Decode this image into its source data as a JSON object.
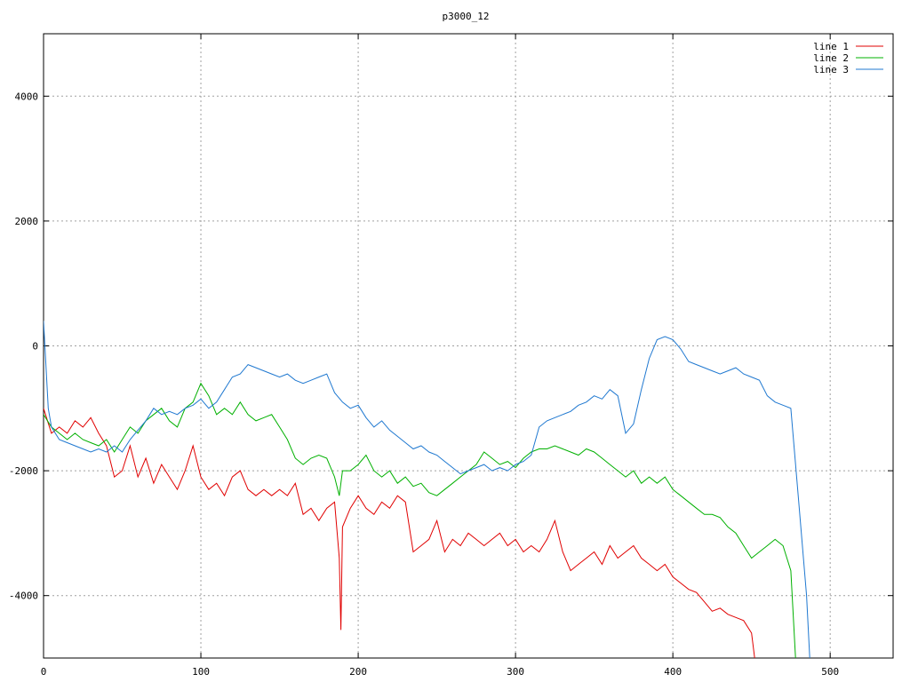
{
  "chart_data": {
    "type": "line",
    "title": "p3000_12",
    "xlabel": "",
    "ylabel": "",
    "xlim": [
      0,
      540
    ],
    "ylim": [
      -5000,
      5000
    ],
    "x_ticks": [
      0,
      100,
      200,
      300,
      400,
      500
    ],
    "y_ticks": [
      -4000,
      -2000,
      0,
      2000,
      4000
    ],
    "x_tick_labels": [
      "0",
      "100",
      "200",
      "300",
      "400",
      "500"
    ],
    "y_tick_labels": [
      "-4000",
      "-2000",
      "0",
      "2000",
      "4000"
    ],
    "grid": true,
    "legend_position": "top-right",
    "series": [
      {
        "name": "line 1",
        "color": "#e00000",
        "points": [
          [
            0,
            -1000
          ],
          [
            5,
            -1400
          ],
          [
            10,
            -1300
          ],
          [
            15,
            -1400
          ],
          [
            20,
            -1200
          ],
          [
            25,
            -1300
          ],
          [
            30,
            -1150
          ],
          [
            35,
            -1400
          ],
          [
            40,
            -1600
          ],
          [
            45,
            -2100
          ],
          [
            50,
            -2000
          ],
          [
            55,
            -1600
          ],
          [
            60,
            -2100
          ],
          [
            65,
            -1800
          ],
          [
            70,
            -2200
          ],
          [
            75,
            -1900
          ],
          [
            80,
            -2100
          ],
          [
            85,
            -2300
          ],
          [
            90,
            -2000
          ],
          [
            95,
            -1600
          ],
          [
            100,
            -2100
          ],
          [
            105,
            -2300
          ],
          [
            110,
            -2200
          ],
          [
            115,
            -2400
          ],
          [
            120,
            -2100
          ],
          [
            125,
            -2000
          ],
          [
            130,
            -2300
          ],
          [
            135,
            -2400
          ],
          [
            140,
            -2300
          ],
          [
            145,
            -2400
          ],
          [
            150,
            -2300
          ],
          [
            155,
            -2400
          ],
          [
            160,
            -2200
          ],
          [
            165,
            -2700
          ],
          [
            170,
            -2600
          ],
          [
            175,
            -2800
          ],
          [
            180,
            -2600
          ],
          [
            185,
            -2500
          ],
          [
            188,
            -3400
          ],
          [
            189,
            -4550
          ],
          [
            190,
            -2900
          ],
          [
            195,
            -2600
          ],
          [
            200,
            -2400
          ],
          [
            205,
            -2600
          ],
          [
            210,
            -2700
          ],
          [
            215,
            -2500
          ],
          [
            220,
            -2600
          ],
          [
            225,
            -2400
          ],
          [
            230,
            -2500
          ],
          [
            235,
            -3300
          ],
          [
            240,
            -3200
          ],
          [
            245,
            -3100
          ],
          [
            250,
            -2800
          ],
          [
            255,
            -3300
          ],
          [
            260,
            -3100
          ],
          [
            265,
            -3200
          ],
          [
            270,
            -3000
          ],
          [
            275,
            -3100
          ],
          [
            280,
            -3200
          ],
          [
            285,
            -3100
          ],
          [
            290,
            -3000
          ],
          [
            295,
            -3200
          ],
          [
            300,
            -3100
          ],
          [
            305,
            -3300
          ],
          [
            310,
            -3200
          ],
          [
            315,
            -3300
          ],
          [
            320,
            -3100
          ],
          [
            325,
            -2800
          ],
          [
            330,
            -3300
          ],
          [
            335,
            -3600
          ],
          [
            340,
            -3500
          ],
          [
            345,
            -3400
          ],
          [
            350,
            -3300
          ],
          [
            355,
            -3500
          ],
          [
            360,
            -3200
          ],
          [
            365,
            -3400
          ],
          [
            370,
            -3300
          ],
          [
            375,
            -3200
          ],
          [
            380,
            -3400
          ],
          [
            385,
            -3500
          ],
          [
            390,
            -3600
          ],
          [
            395,
            -3500
          ],
          [
            400,
            -3700
          ],
          [
            405,
            -3800
          ],
          [
            410,
            -3900
          ],
          [
            415,
            -3950
          ],
          [
            420,
            -4100
          ],
          [
            425,
            -4250
          ],
          [
            430,
            -4200
          ],
          [
            435,
            -4300
          ],
          [
            440,
            -4350
          ],
          [
            445,
            -4400
          ],
          [
            450,
            -4600
          ],
          [
            452,
            -5000
          ]
        ]
      },
      {
        "name": "line 2",
        "color": "#00b000",
        "points": [
          [
            0,
            -1100
          ],
          [
            5,
            -1300
          ],
          [
            10,
            -1400
          ],
          [
            15,
            -1500
          ],
          [
            20,
            -1400
          ],
          [
            25,
            -1500
          ],
          [
            30,
            -1550
          ],
          [
            35,
            -1600
          ],
          [
            40,
            -1500
          ],
          [
            45,
            -1700
          ],
          [
            50,
            -1500
          ],
          [
            55,
            -1300
          ],
          [
            60,
            -1400
          ],
          [
            65,
            -1200
          ],
          [
            70,
            -1100
          ],
          [
            75,
            -1000
          ],
          [
            80,
            -1200
          ],
          [
            85,
            -1300
          ],
          [
            90,
            -1000
          ],
          [
            95,
            -900
          ],
          [
            100,
            -600
          ],
          [
            105,
            -800
          ],
          [
            110,
            -1100
          ],
          [
            115,
            -1000
          ],
          [
            120,
            -1100
          ],
          [
            125,
            -900
          ],
          [
            130,
            -1100
          ],
          [
            135,
            -1200
          ],
          [
            140,
            -1150
          ],
          [
            145,
            -1100
          ],
          [
            150,
            -1300
          ],
          [
            155,
            -1500
          ],
          [
            160,
            -1800
          ],
          [
            165,
            -1900
          ],
          [
            170,
            -1800
          ],
          [
            175,
            -1750
          ],
          [
            180,
            -1800
          ],
          [
            185,
            -2100
          ],
          [
            188,
            -2400
          ],
          [
            190,
            -2000
          ],
          [
            195,
            -2000
          ],
          [
            200,
            -1900
          ],
          [
            205,
            -1750
          ],
          [
            210,
            -2000
          ],
          [
            215,
            -2100
          ],
          [
            220,
            -2000
          ],
          [
            225,
            -2200
          ],
          [
            230,
            -2100
          ],
          [
            235,
            -2250
          ],
          [
            240,
            -2200
          ],
          [
            245,
            -2350
          ],
          [
            250,
            -2400
          ],
          [
            255,
            -2300
          ],
          [
            260,
            -2200
          ],
          [
            265,
            -2100
          ],
          [
            270,
            -2000
          ],
          [
            275,
            -1900
          ],
          [
            280,
            -1700
          ],
          [
            285,
            -1800
          ],
          [
            290,
            -1900
          ],
          [
            295,
            -1850
          ],
          [
            300,
            -1950
          ],
          [
            305,
            -1800
          ],
          [
            310,
            -1700
          ],
          [
            315,
            -1650
          ],
          [
            320,
            -1650
          ],
          [
            325,
            -1600
          ],
          [
            330,
            -1650
          ],
          [
            335,
            -1700
          ],
          [
            340,
            -1750
          ],
          [
            345,
            -1650
          ],
          [
            350,
            -1700
          ],
          [
            355,
            -1800
          ],
          [
            360,
            -1900
          ],
          [
            365,
            -2000
          ],
          [
            370,
            -2100
          ],
          [
            375,
            -2000
          ],
          [
            380,
            -2200
          ],
          [
            385,
            -2100
          ],
          [
            390,
            -2200
          ],
          [
            395,
            -2100
          ],
          [
            400,
            -2300
          ],
          [
            405,
            -2400
          ],
          [
            410,
            -2500
          ],
          [
            415,
            -2600
          ],
          [
            420,
            -2700
          ],
          [
            425,
            -2700
          ],
          [
            430,
            -2750
          ],
          [
            435,
            -2900
          ],
          [
            440,
            -3000
          ],
          [
            445,
            -3200
          ],
          [
            450,
            -3400
          ],
          [
            455,
            -3300
          ],
          [
            460,
            -3200
          ],
          [
            465,
            -3100
          ],
          [
            470,
            -3200
          ],
          [
            475,
            -3600
          ],
          [
            478,
            -5000
          ]
        ]
      },
      {
        "name": "line 3",
        "color": "#1f78d0",
        "points": [
          [
            0,
            400
          ],
          [
            3,
            -1000
          ],
          [
            5,
            -1300
          ],
          [
            10,
            -1500
          ],
          [
            15,
            -1550
          ],
          [
            20,
            -1600
          ],
          [
            25,
            -1650
          ],
          [
            30,
            -1700
          ],
          [
            35,
            -1650
          ],
          [
            40,
            -1700
          ],
          [
            45,
            -1600
          ],
          [
            50,
            -1700
          ],
          [
            55,
            -1500
          ],
          [
            60,
            -1350
          ],
          [
            65,
            -1200
          ],
          [
            70,
            -1000
          ],
          [
            75,
            -1100
          ],
          [
            80,
            -1050
          ],
          [
            85,
            -1100
          ],
          [
            90,
            -1000
          ],
          [
            95,
            -950
          ],
          [
            100,
            -850
          ],
          [
            105,
            -1000
          ],
          [
            110,
            -900
          ],
          [
            115,
            -700
          ],
          [
            120,
            -500
          ],
          [
            125,
            -450
          ],
          [
            130,
            -300
          ],
          [
            135,
            -350
          ],
          [
            140,
            -400
          ],
          [
            145,
            -450
          ],
          [
            150,
            -500
          ],
          [
            155,
            -450
          ],
          [
            160,
            -550
          ],
          [
            165,
            -600
          ],
          [
            170,
            -550
          ],
          [
            175,
            -500
          ],
          [
            180,
            -450
          ],
          [
            185,
            -750
          ],
          [
            190,
            -900
          ],
          [
            195,
            -1000
          ],
          [
            200,
            -950
          ],
          [
            205,
            -1150
          ],
          [
            210,
            -1300
          ],
          [
            215,
            -1200
          ],
          [
            220,
            -1350
          ],
          [
            225,
            -1450
          ],
          [
            230,
            -1550
          ],
          [
            235,
            -1650
          ],
          [
            240,
            -1600
          ],
          [
            245,
            -1700
          ],
          [
            250,
            -1750
          ],
          [
            255,
            -1850
          ],
          [
            260,
            -1950
          ],
          [
            265,
            -2050
          ],
          [
            270,
            -2000
          ],
          [
            275,
            -1950
          ],
          [
            280,
            -1900
          ],
          [
            285,
            -2000
          ],
          [
            290,
            -1950
          ],
          [
            295,
            -2000
          ],
          [
            300,
            -1900
          ],
          [
            305,
            -1850
          ],
          [
            310,
            -1750
          ],
          [
            315,
            -1300
          ],
          [
            320,
            -1200
          ],
          [
            325,
            -1150
          ],
          [
            330,
            -1100
          ],
          [
            335,
            -1050
          ],
          [
            340,
            -950
          ],
          [
            345,
            -900
          ],
          [
            350,
            -800
          ],
          [
            355,
            -850
          ],
          [
            360,
            -700
          ],
          [
            365,
            -800
          ],
          [
            370,
            -1400
          ],
          [
            375,
            -1250
          ],
          [
            380,
            -700
          ],
          [
            385,
            -200
          ],
          [
            390,
            100
          ],
          [
            395,
            150
          ],
          [
            400,
            100
          ],
          [
            405,
            -50
          ],
          [
            410,
            -250
          ],
          [
            415,
            -300
          ],
          [
            420,
            -350
          ],
          [
            425,
            -400
          ],
          [
            430,
            -450
          ],
          [
            435,
            -400
          ],
          [
            440,
            -350
          ],
          [
            445,
            -450
          ],
          [
            450,
            -500
          ],
          [
            455,
            -550
          ],
          [
            460,
            -800
          ],
          [
            465,
            -900
          ],
          [
            470,
            -950
          ],
          [
            475,
            -1000
          ],
          [
            480,
            -2500
          ],
          [
            485,
            -4000
          ],
          [
            487,
            -5000
          ]
        ]
      }
    ]
  }
}
